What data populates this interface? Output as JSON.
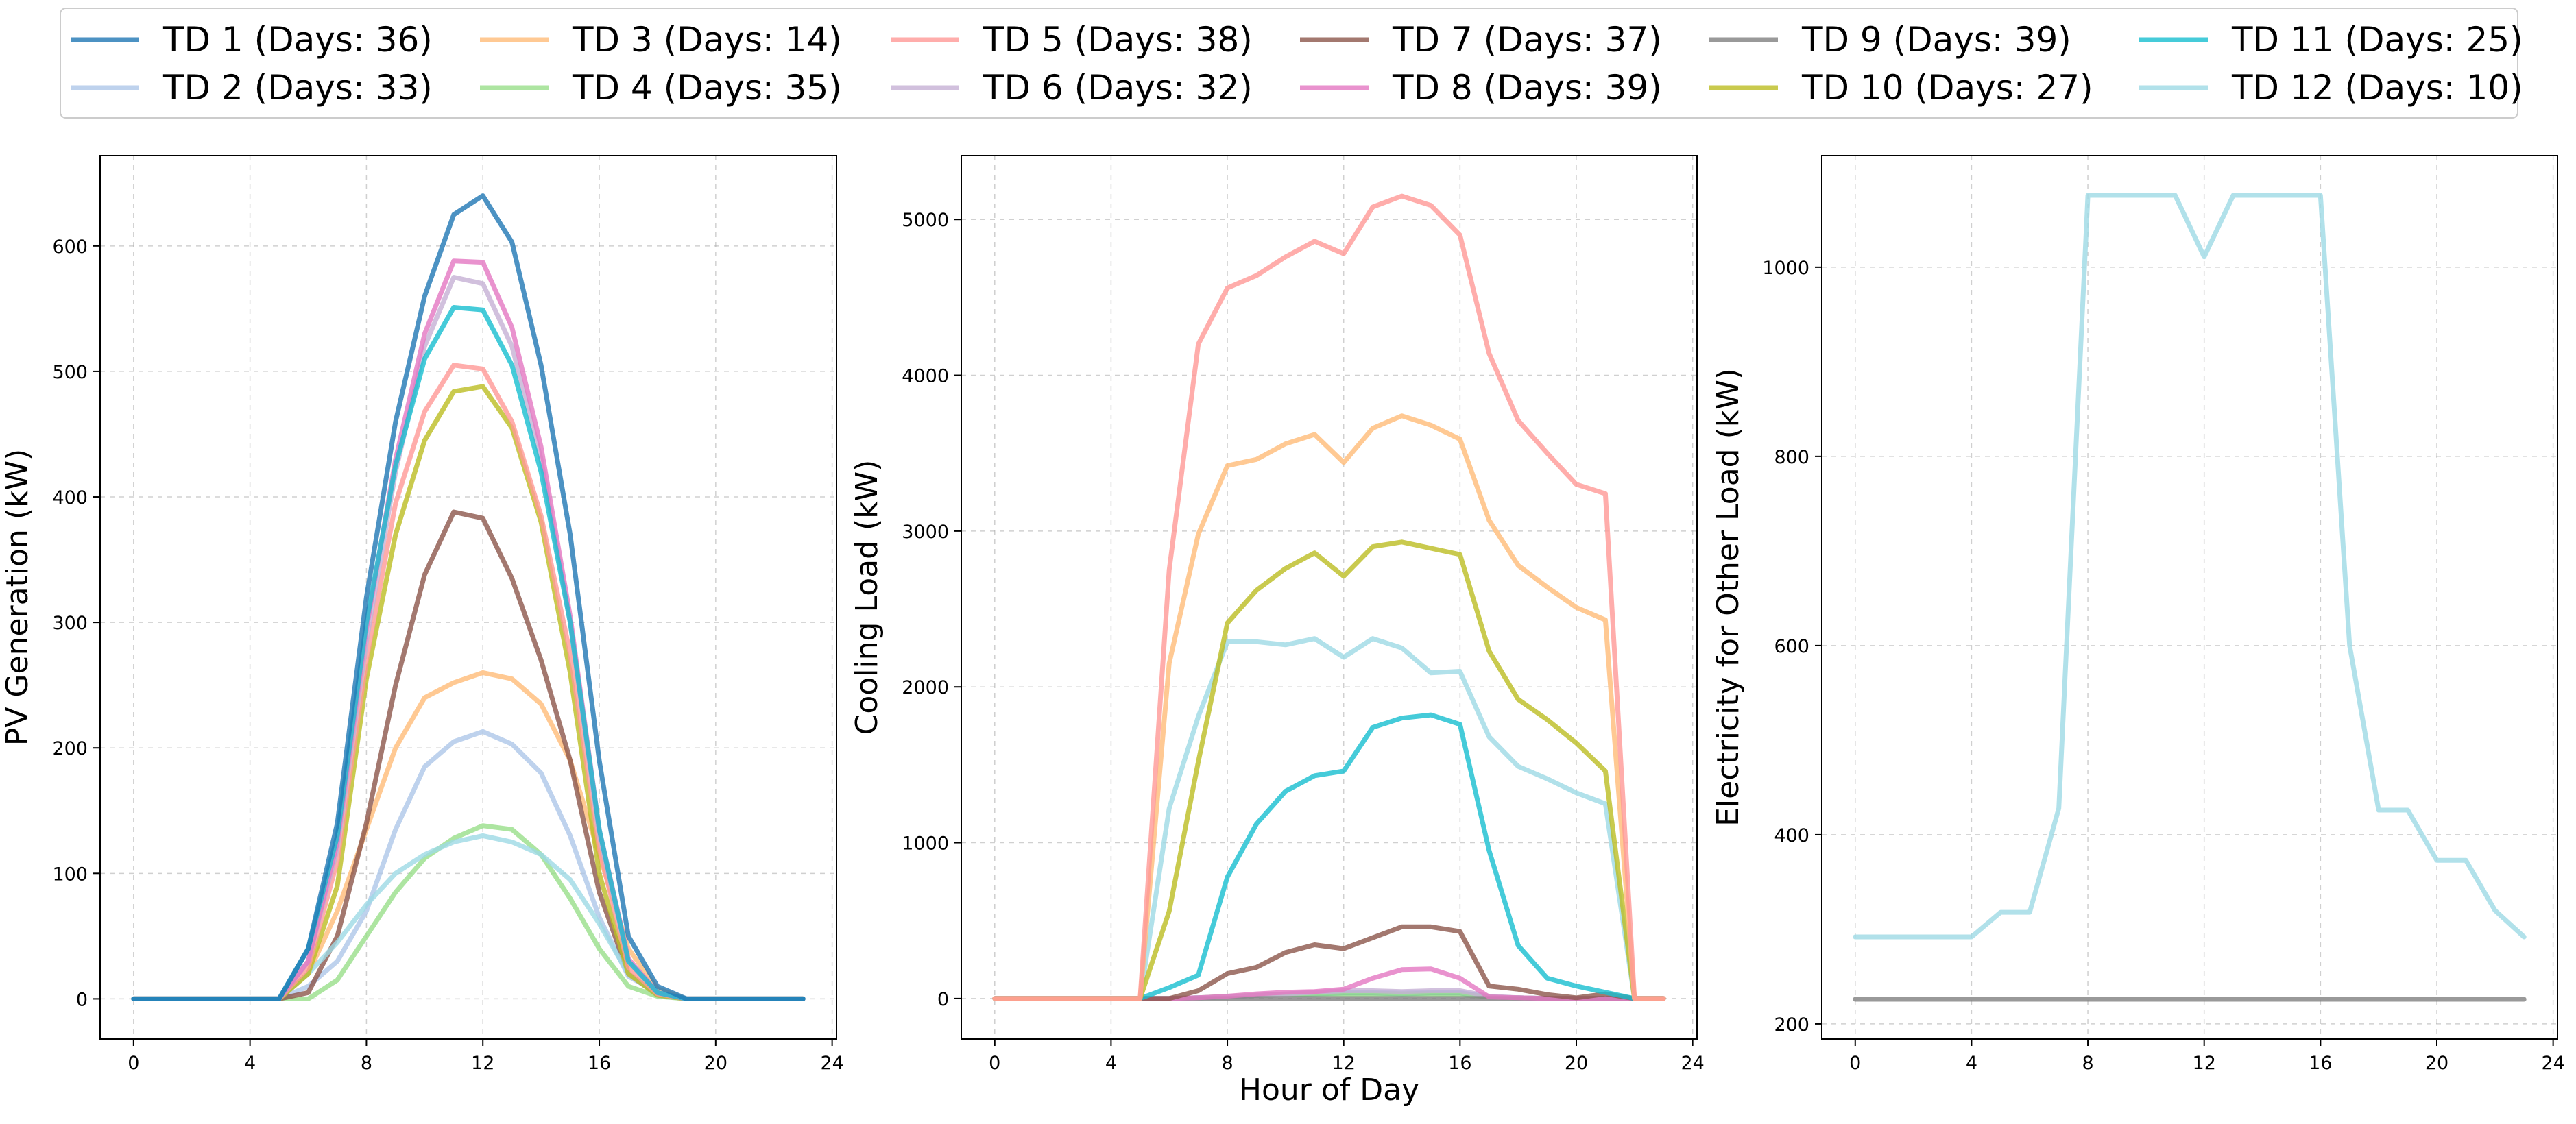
{
  "colors": {
    "TD 1": "#1f77b4",
    "TD 2": "#aec7e8",
    "TD 3": "#ffbb78",
    "TD 4": "#98df8a",
    "TD 5": "#ff9896",
    "TD 6": "#c5b0d5",
    "TD 7": "#8c564b",
    "TD 8": "#e377c2",
    "TD 9": "#7f7f7f",
    "TD 10": "#bcbd22",
    "TD 11": "#17becf",
    "TD 12": "#9edae5"
  },
  "legend": [
    {
      "key": "TD 1",
      "label": "TD 1 (Days: 36)"
    },
    {
      "key": "TD 2",
      "label": "TD 2 (Days: 33)"
    },
    {
      "key": "TD 3",
      "label": "TD 3 (Days: 14)"
    },
    {
      "key": "TD 4",
      "label": "TD 4 (Days: 35)"
    },
    {
      "key": "TD 5",
      "label": "TD 5 (Days: 38)"
    },
    {
      "key": "TD 6",
      "label": "TD 6 (Days: 32)"
    },
    {
      "key": "TD 7",
      "label": "TD 7 (Days: 37)"
    },
    {
      "key": "TD 8",
      "label": "TD 8 (Days: 39)"
    },
    {
      "key": "TD 9",
      "label": "TD 9 (Days: 39)"
    },
    {
      "key": "TD 10",
      "label": "TD 10 (Days: 27)"
    },
    {
      "key": "TD 11",
      "label": "TD 11 (Days: 25)"
    },
    {
      "key": "TD 12",
      "label": "TD 12 (Days: 10)"
    }
  ],
  "chart_data": [
    {
      "type": "line",
      "title": "",
      "xlabel": "",
      "ylabel": "PV Generation (kW)",
      "xlim": [
        -1.15,
        24.15
      ],
      "ylim": [
        -32,
        672
      ],
      "xticks": [
        0,
        4,
        8,
        12,
        16,
        20,
        24
      ],
      "yticks": [
        0,
        100,
        200,
        300,
        400,
        500,
        600
      ],
      "grid": true,
      "x": [
        0,
        1,
        2,
        3,
        4,
        5,
        6,
        7,
        8,
        9,
        10,
        11,
        12,
        13,
        14,
        15,
        16,
        17,
        18,
        19,
        20,
        21,
        22,
        23
      ],
      "series": [
        {
          "name": "TD 2",
          "values": [
            0,
            0,
            0,
            0,
            0,
            0,
            10,
            30,
            70,
            135,
            185,
            205,
            213,
            203,
            180,
            130,
            65,
            18,
            5,
            0,
            0,
            0,
            0,
            0
          ]
        },
        {
          "name": "TD 4",
          "values": [
            0,
            0,
            0,
            0,
            0,
            0,
            0,
            15,
            50,
            85,
            112,
            128,
            138,
            135,
            115,
            80,
            40,
            10,
            2,
            0,
            0,
            0,
            0,
            0
          ]
        },
        {
          "name": "TD 3",
          "values": [
            0,
            0,
            0,
            0,
            0,
            0,
            20,
            70,
            135,
            200,
            240,
            252,
            260,
            255,
            235,
            190,
            115,
            40,
            8,
            0,
            0,
            0,
            0,
            0
          ]
        },
        {
          "name": "TD 7",
          "values": [
            0,
            0,
            0,
            0,
            0,
            0,
            5,
            50,
            140,
            250,
            338,
            388,
            383,
            335,
            270,
            190,
            85,
            20,
            3,
            0,
            0,
            0,
            0,
            0
          ]
        },
        {
          "name": "TD 12",
          "values": [
            0,
            0,
            0,
            0,
            0,
            0,
            20,
            45,
            75,
            100,
            115,
            125,
            130,
            125,
            115,
            95,
            60,
            20,
            3,
            0,
            0,
            0,
            0,
            0
          ]
        },
        {
          "name": "TD 10",
          "values": [
            0,
            0,
            0,
            0,
            0,
            0,
            20,
            90,
            255,
            370,
            445,
            484,
            488,
            455,
            380,
            260,
            100,
            20,
            3,
            0,
            0,
            0,
            0,
            0
          ]
        },
        {
          "name": "TD 5",
          "values": [
            0,
            0,
            0,
            0,
            0,
            0,
            25,
            110,
            270,
            395,
            468,
            505,
            502,
            460,
            385,
            275,
            120,
            25,
            4,
            0,
            0,
            0,
            0,
            0
          ]
        },
        {
          "name": "TD 6",
          "values": [
            0,
            0,
            0,
            0,
            0,
            0,
            30,
            120,
            285,
            420,
            520,
            575,
            570,
            520,
            430,
            300,
            130,
            30,
            5,
            0,
            0,
            0,
            0,
            0
          ]
        },
        {
          "name": "TD 8",
          "values": [
            0,
            0,
            0,
            0,
            0,
            0,
            30,
            125,
            295,
            430,
            530,
            588,
            587,
            535,
            440,
            305,
            135,
            32,
            5,
            0,
            0,
            0,
            0,
            0
          ]
        },
        {
          "name": "TD 11",
          "values": [
            0,
            0,
            0,
            0,
            0,
            0,
            40,
            130,
            300,
            425,
            510,
            551,
            549,
            505,
            420,
            300,
            135,
            30,
            5,
            0,
            0,
            0,
            0,
            0
          ]
        },
        {
          "name": "TD 1",
          "values": [
            0,
            0,
            0,
            0,
            0,
            0,
            40,
            140,
            320,
            460,
            560,
            625,
            640,
            603,
            505,
            370,
            190,
            50,
            10,
            0,
            0,
            0,
            0,
            0
          ]
        }
      ]
    },
    {
      "type": "line",
      "title": "",
      "xlabel": "Hour of Day",
      "ylabel": "Cooling Load (kW)",
      "xlim": [
        -1.15,
        24.15
      ],
      "ylim": [
        -260,
        5410
      ],
      "xticks": [
        0,
        4,
        8,
        12,
        16,
        20,
        24
      ],
      "yticks": [
        0,
        1000,
        2000,
        3000,
        4000,
        5000
      ],
      "grid": true,
      "x": [
        0,
        1,
        2,
        3,
        4,
        5,
        6,
        7,
        8,
        9,
        10,
        11,
        12,
        13,
        14,
        15,
        16,
        17,
        18,
        19,
        20,
        21,
        22,
        23
      ],
      "series": [
        {
          "name": "TD 1",
          "values": [
            0,
            0,
            0,
            0,
            0,
            0,
            0,
            5,
            10,
            20,
            25,
            30,
            35,
            35,
            30,
            35,
            35,
            10,
            5,
            0,
            0,
            0,
            0,
            0
          ]
        },
        {
          "name": "TD 2",
          "values": [
            0,
            0,
            0,
            0,
            0,
            0,
            0,
            5,
            10,
            20,
            30,
            35,
            40,
            40,
            35,
            40,
            40,
            10,
            5,
            0,
            0,
            0,
            0,
            0
          ]
        },
        {
          "name": "TD 4",
          "values": [
            0,
            0,
            0,
            0,
            0,
            0,
            0,
            5,
            15,
            20,
            25,
            30,
            30,
            30,
            30,
            30,
            25,
            10,
            5,
            0,
            0,
            0,
            0,
            0
          ]
        },
        {
          "name": "TD 6",
          "values": [
            0,
            0,
            0,
            0,
            0,
            0,
            0,
            5,
            10,
            20,
            30,
            40,
            50,
            50,
            45,
            50,
            50,
            15,
            5,
            0,
            0,
            0,
            0,
            0
          ]
        },
        {
          "name": "TD 9",
          "values": [
            0,
            0,
            0,
            0,
            0,
            0,
            0,
            0,
            0,
            0,
            0,
            0,
            0,
            0,
            0,
            0,
            0,
            0,
            0,
            0,
            0,
            0,
            0,
            0
          ]
        },
        {
          "name": "TD 8",
          "values": [
            0,
            0,
            0,
            0,
            0,
            0,
            0,
            5,
            15,
            30,
            40,
            45,
            60,
            130,
            185,
            190,
            130,
            10,
            5,
            0,
            0,
            0,
            0,
            0
          ]
        },
        {
          "name": "TD 7",
          "values": [
            0,
            0,
            0,
            0,
            0,
            0,
            0,
            50,
            160,
            200,
            295,
            345,
            320,
            390,
            460,
            460,
            430,
            80,
            60,
            25,
            5,
            30,
            0,
            0
          ]
        },
        {
          "name": "TD 11",
          "values": [
            0,
            0,
            0,
            0,
            0,
            0,
            70,
            150,
            780,
            1120,
            1330,
            1430,
            1460,
            1740,
            1800,
            1820,
            1760,
            950,
            340,
            130,
            80,
            40,
            0,
            0
          ]
        },
        {
          "name": "TD 12",
          "values": [
            0,
            0,
            0,
            0,
            0,
            0,
            1220,
            1810,
            2290,
            2290,
            2270,
            2310,
            2190,
            2310,
            2250,
            2090,
            2100,
            1680,
            1490,
            1410,
            1320,
            1250,
            0,
            0
          ]
        },
        {
          "name": "TD 10",
          "values": [
            0,
            0,
            0,
            0,
            0,
            0,
            560,
            1520,
            2410,
            2620,
            2760,
            2860,
            2710,
            2900,
            2930,
            2890,
            2850,
            2230,
            1920,
            1790,
            1640,
            1460,
            0,
            0
          ]
        },
        {
          "name": "TD 3",
          "values": [
            0,
            0,
            0,
            0,
            0,
            0,
            2150,
            2980,
            3420,
            3460,
            3560,
            3620,
            3440,
            3660,
            3740,
            3680,
            3590,
            3070,
            2780,
            2640,
            2510,
            2430,
            0,
            0
          ]
        },
        {
          "name": "TD 5",
          "values": [
            0,
            0,
            0,
            0,
            0,
            0,
            2750,
            4200,
            4560,
            4640,
            4760,
            4860,
            4780,
            5080,
            5150,
            5090,
            4900,
            4140,
            3710,
            3500,
            3300,
            3240,
            0,
            0
          ]
        }
      ]
    },
    {
      "type": "line",
      "title": "",
      "xlabel": "",
      "ylabel": "Electricity for Other Load (kW)",
      "xlim": [
        -1.15,
        24.15
      ],
      "ylim": [
        184,
        1118
      ],
      "xticks": [
        0,
        4,
        8,
        12,
        16,
        20,
        24
      ],
      "yticks": [
        200,
        400,
        600,
        800,
        1000
      ],
      "grid": true,
      "x": [
        0,
        1,
        2,
        3,
        4,
        5,
        6,
        7,
        8,
        9,
        10,
        11,
        12,
        13,
        14,
        15,
        16,
        17,
        18,
        19,
        20,
        21,
        22,
        23
      ],
      "series": [
        {
          "name": "TD 9",
          "values": [
            226,
            226,
            226,
            226,
            226,
            226,
            226,
            226,
            226,
            226,
            226,
            226,
            226,
            226,
            226,
            226,
            226,
            226,
            226,
            226,
            226,
            226,
            226,
            226
          ]
        },
        {
          "name": "TD 12",
          "values": [
            292,
            292,
            292,
            292,
            292,
            318,
            318,
            428,
            1076,
            1076,
            1076,
            1076,
            1011,
            1076,
            1076,
            1076,
            1076,
            600,
            426,
            426,
            373,
            373,
            320,
            292
          ]
        }
      ]
    }
  ]
}
